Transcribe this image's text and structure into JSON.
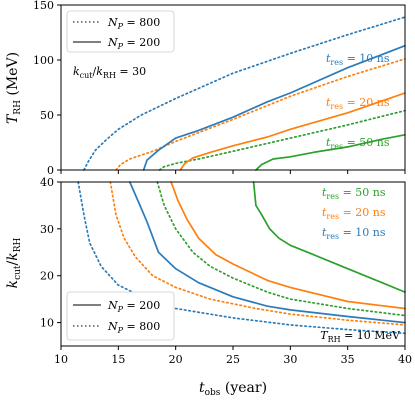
{
  "colors": {
    "10ns": "#2b7bba",
    "20ns": "#ff7f0e",
    "50ns": "#2ca02c"
  },
  "chart_data": [
    {
      "type": "line",
      "xlabel": "",
      "ylabel": "T_RH (MeV)",
      "xlim": [
        10,
        40
      ],
      "ylim": [
        0,
        150
      ],
      "xticks": [],
      "yticks": [
        "0",
        "50",
        "100",
        "150"
      ],
      "legend": {
        "placement": "top-left",
        "entries": [
          {
            "label": "N_P = 800",
            "style": "dotted"
          },
          {
            "label": "N_P = 200",
            "style": "solid"
          }
        ]
      },
      "annotation": "k_cut/k_RH = 30",
      "series": [
        {
          "label": "t_res = 10 ns",
          "color_key": "10ns",
          "style": "dotted",
          "x": [
            12,
            12.4,
            13,
            14,
            15,
            17,
            20,
            25,
            30,
            35,
            40
          ],
          "y": [
            0,
            8,
            18,
            28,
            37,
            50,
            65,
            88,
            106,
            123,
            139
          ]
        },
        {
          "label": "t_res = 20 ns",
          "color_key": "20ns",
          "style": "dotted",
          "x": [
            14.8,
            15.2,
            16,
            18,
            20,
            25,
            30,
            35,
            40
          ],
          "y": [
            0,
            5,
            10,
            17,
            26,
            46,
            67,
            85,
            101
          ]
        },
        {
          "label": "t_res = 50 ns",
          "color_key": "50ns",
          "style": "dotted",
          "x": [
            18.6,
            19,
            20,
            22,
            25,
            30,
            35,
            40
          ],
          "y": [
            0,
            3,
            6,
            10,
            17,
            29,
            41,
            54
          ]
        },
        {
          "label": "t_res = 10 ns",
          "color_key": "10ns",
          "style": "solid",
          "x": [
            17.2,
            17.5,
            18.5,
            20,
            22,
            25,
            28,
            30,
            35,
            40
          ],
          "y": [
            0,
            9,
            18,
            29,
            36,
            48,
            62,
            70,
            93,
            113
          ]
        },
        {
          "label": "t_res = 20 ns",
          "color_key": "20ns",
          "style": "solid",
          "x": [
            20.4,
            20.8,
            21.5,
            23,
            25,
            28,
            30,
            35,
            40
          ],
          "y": [
            0,
            6,
            11,
            16,
            22,
            30,
            37,
            52,
            70
          ]
        },
        {
          "label": "t_res = 50 ns",
          "color_key": "50ns",
          "style": "solid",
          "x": [
            27,
            27.5,
            28.5,
            30,
            32,
            35,
            38,
            40
          ],
          "y": [
            0,
            5,
            10,
            12,
            16,
            21,
            28,
            32
          ]
        }
      ],
      "labels": [
        {
          "text": "t_res = 10 ns",
          "color_key": "10ns"
        },
        {
          "text": "t_res = 20 ns",
          "color_key": "20ns"
        },
        {
          "text": "t_res = 50 ns",
          "color_key": "50ns"
        }
      ]
    },
    {
      "type": "line",
      "xlabel": "t_obs (year)",
      "ylabel": "k_cut/k_RH",
      "xlim": [
        10,
        40
      ],
      "ylim": [
        5,
        40
      ],
      "xticks": [
        "10",
        "15",
        "20",
        "25",
        "30",
        "35",
        "40"
      ],
      "yticks": [
        "10",
        "20",
        "30",
        "40"
      ],
      "legend": {
        "placement": "bottom-left",
        "entries": [
          {
            "label": "N_P = 200",
            "style": "solid"
          },
          {
            "label": "N_P = 800",
            "style": "dotted"
          }
        ]
      },
      "annotation": "T_RH = 10 MeV",
      "series": [
        {
          "label": "t_res = 10 ns",
          "color_key": "10ns",
          "style": "dotted",
          "x": [
            11.5,
            12,
            12.5,
            13.5,
            15,
            17.5,
            20,
            25,
            30,
            35,
            40
          ],
          "y": [
            40,
            33,
            27,
            22,
            18,
            15,
            13,
            11,
            9.5,
            8.5,
            7.7
          ]
        },
        {
          "label": "t_res = 20 ns",
          "color_key": "20ns",
          "style": "dotted",
          "x": [
            14.3,
            14.8,
            15.5,
            16.5,
            18,
            20,
            23,
            27,
            30,
            35,
            40
          ],
          "y": [
            40,
            33,
            28,
            24,
            20,
            17.5,
            15,
            13,
            11.8,
            10.5,
            9.5
          ]
        },
        {
          "label": "t_res = 50 ns",
          "color_key": "50ns",
          "style": "dotted",
          "x": [
            18.4,
            19,
            20,
            21.5,
            23,
            25,
            28,
            30,
            35,
            40
          ],
          "y": [
            40,
            35,
            30,
            25,
            22,
            19.5,
            16.5,
            15,
            13,
            11.5
          ]
        },
        {
          "label": "t_res = 10 ns",
          "color_key": "10ns",
          "style": "solid",
          "x": [
            16,
            16.8,
            17.5,
            18.5,
            20,
            22,
            25,
            28,
            30,
            35,
            40
          ],
          "y": [
            40,
            35.5,
            31.5,
            25,
            21.5,
            18.5,
            15.5,
            13.5,
            12.7,
            11.3,
            10
          ]
        },
        {
          "label": "t_res = 20 ns",
          "color_key": "20ns",
          "style": "solid",
          "x": [
            19.6,
            20.2,
            21,
            22,
            23.5,
            25,
            28,
            30,
            35,
            40
          ],
          "y": [
            40,
            36,
            32,
            28,
            24.5,
            22.5,
            19,
            17.5,
            14.5,
            13
          ]
        },
        {
          "label": "t_res = 50 ns",
          "color_key": "50ns",
          "style": "solid",
          "x": [
            26.8,
            27,
            27.5,
            28.2,
            29,
            30,
            32,
            35,
            38,
            40
          ],
          "y": [
            40,
            35,
            33,
            30,
            28,
            26.5,
            24.5,
            21.5,
            18.5,
            16.5
          ]
        }
      ],
      "labels": [
        {
          "text": "t_res = 50 ns",
          "color_key": "50ns"
        },
        {
          "text": "t_res = 20 ns",
          "color_key": "20ns"
        },
        {
          "text": "t_res = 10 ns",
          "color_key": "10ns"
        }
      ]
    }
  ]
}
